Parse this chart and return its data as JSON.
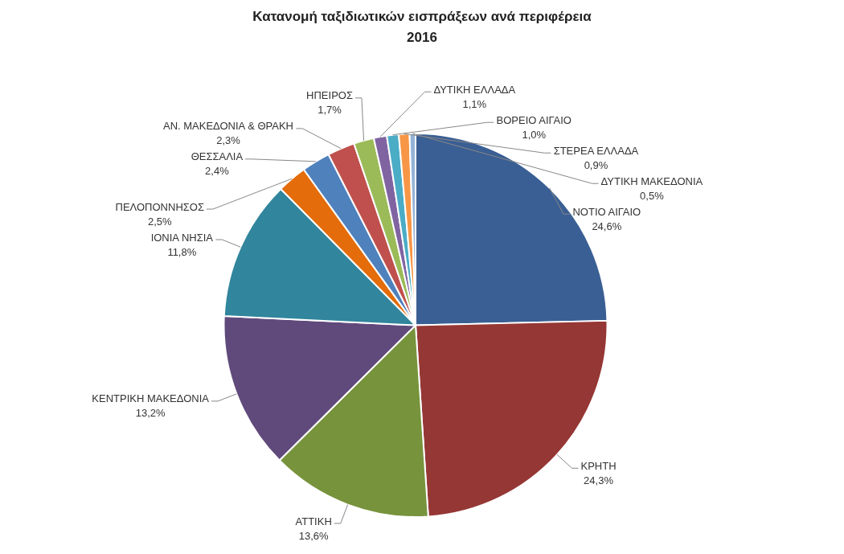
{
  "chart_data": {
    "type": "pie",
    "title": "Κατανομή ταξιδιωτικών εισπράξεων ανά περιφέρεια\n2016",
    "categories": [
      "ΝΟΤΙΟ ΑΙΓΑΙΟ",
      "ΚΡΗΤΗ",
      "ΑΤΤΙΚΗ",
      "ΚΕΝΤΡΙΚΗ ΜΑΚΕΔΟΝΙΑ",
      "ΙΟΝΙΑ ΝΗΣΙΑ",
      "ΠΕΛΟΠΟΝΝΗΣΟΣ",
      "ΘΕΣΣΑΛΙΑ",
      "ΑΝ. ΜΑΚΕΔΟΝΙΑ & ΘΡΑΚΗ",
      "ΗΠΕΙΡΟΣ",
      "ΔΥΤΙΚΗ ΕΛΛΑΔΑ",
      "ΒΟΡΕΙΟ ΑΙΓΑΙΟ",
      "ΣΤΕΡΕΑ ΕΛΛΑΔΑ",
      "ΔΥΤΙΚΗ ΜΑΚΕΔΟΝΙΑ"
    ],
    "values": [
      24.6,
      24.3,
      13.6,
      13.2,
      11.8,
      2.5,
      2.4,
      2.3,
      1.7,
      1.1,
      1.0,
      0.9,
      0.5
    ],
    "value_labels": [
      "24,6%",
      "24,3%",
      "13,6%",
      "13,2%",
      "11,8%",
      "2,5%",
      "2,4%",
      "2,3%",
      "1,7%",
      "1,1%",
      "1,0%",
      "0,9%",
      "0,5%"
    ],
    "colors": [
      "#3a5f94",
      "#953735",
      "#77933c",
      "#604a7b",
      "#31859c",
      "#e46c0a",
      "#4f81bd",
      "#c0504d",
      "#9bbb59",
      "#8064a2",
      "#4bacc6",
      "#f79646",
      "#95b3d7"
    ],
    "legend": false
  }
}
